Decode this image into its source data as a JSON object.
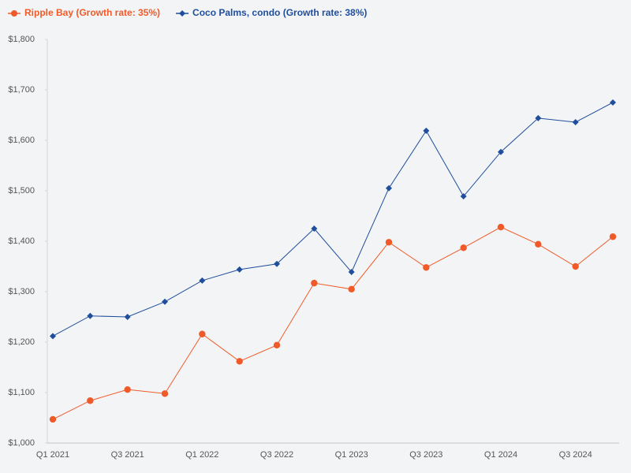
{
  "chart_data": {
    "type": "line",
    "categories": [
      "Q1 2021",
      null,
      "Q3 2021",
      null,
      "Q1 2022",
      null,
      "Q3 2022",
      null,
      "Q1 2023",
      null,
      "Q3 2023",
      null,
      "Q1 2024",
      null,
      "Q3 2024",
      null
    ],
    "series": [
      {
        "name": "Ripple Bay (Growth rate: 35%)",
        "color": "#f05a28",
        "marker": "circle",
        "values": [
          1047,
          1084,
          1106,
          1098,
          1216,
          1162,
          1194,
          1317,
          1305,
          1398,
          1348,
          1387,
          1428,
          1394,
          1350,
          1409
        ]
      },
      {
        "name": "Coco Palms, condo (Growth rate: 38%)",
        "color": "#1f4e9c",
        "marker": "diamond",
        "values": [
          1212,
          1252,
          1250,
          1280,
          1322,
          1344,
          1355,
          1425,
          1339,
          1505,
          1619,
          1489,
          1577,
          1644,
          1636,
          1675
        ]
      }
    ],
    "ylim": [
      1000,
      1800
    ],
    "yticks": [
      {
        "value": 1000,
        "label": "$1,000"
      },
      {
        "value": 1100,
        "label": "$1,100"
      },
      {
        "value": 1200,
        "label": "$1,200"
      },
      {
        "value": 1300,
        "label": "$1,300"
      },
      {
        "value": 1400,
        "label": "$1,400"
      },
      {
        "value": 1500,
        "label": "$1,500"
      },
      {
        "value": 1600,
        "label": "$1,600"
      },
      {
        "value": 1700,
        "label": "$1,700"
      },
      {
        "value": 1800,
        "label": "$1,800"
      }
    ],
    "grid": false,
    "legend": "top-left"
  }
}
